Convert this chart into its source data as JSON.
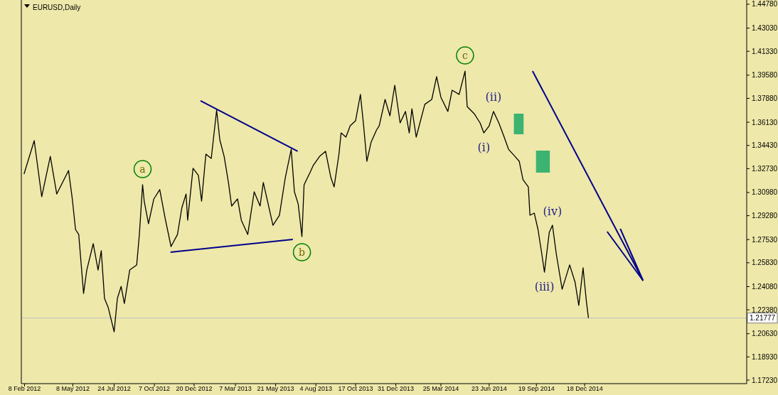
{
  "chart_data": {
    "type": "line",
    "title": "EURUSD,Daily",
    "xlim": [
      "2012-02-02",
      "2015-10-16"
    ],
    "xticks": [
      {
        "value": "2012-02-08",
        "label": "8 Feb 2012"
      },
      {
        "value": "2012-05-08",
        "label": "8 May 2012"
      },
      {
        "value": "2012-07-24",
        "label": "24 Jul 2012"
      },
      {
        "value": "2012-10-07",
        "label": "7 Oct 2012"
      },
      {
        "value": "2012-12-20",
        "label": "20 Dec 2012"
      },
      {
        "value": "2013-03-07",
        "label": "7 Mar 2013"
      },
      {
        "value": "2013-05-21",
        "label": "21 May 2013"
      },
      {
        "value": "2013-08-04",
        "label": "4 Aug 2013"
      },
      {
        "value": "2013-10-17",
        "label": "17 Oct 2013"
      },
      {
        "value": "2013-12-31",
        "label": "31 Dec 2013"
      },
      {
        "value": "2014-03-25",
        "label": "25 Mar 2014"
      },
      {
        "value": "2014-06-23",
        "label": "23 Jun 2014"
      },
      {
        "value": "2014-09-19",
        "label": "19 Sep 2014"
      },
      {
        "value": "2014-12-18",
        "label": "18 Dec 2014"
      }
    ],
    "ylim": [
      1.1697,
      1.4509
    ],
    "yticks": [
      {
        "value": 1.1723,
        "label": "1.17230"
      },
      {
        "value": 1.1893,
        "label": "1.18930"
      },
      {
        "value": 1.2063,
        "label": "1.20630"
      },
      {
        "value": 1.2238,
        "label": "1.22380"
      },
      {
        "value": 1.2408,
        "label": "1.24080"
      },
      {
        "value": 1.2583,
        "label": "1.25830"
      },
      {
        "value": 1.2753,
        "label": "1.27530"
      },
      {
        "value": 1.2928,
        "label": "1.29280"
      },
      {
        "value": 1.3098,
        "label": "1.30980"
      },
      {
        "value": 1.3273,
        "label": "1.32730"
      },
      {
        "value": 1.3443,
        "label": "1.34430"
      },
      {
        "value": 1.3613,
        "label": "1.36130"
      },
      {
        "value": 1.3788,
        "label": "1.37880"
      },
      {
        "value": 1.3958,
        "label": "1.39580"
      },
      {
        "value": 1.4133,
        "label": "1.41330"
      },
      {
        "value": 1.4303,
        "label": "1.43030"
      },
      {
        "value": 1.4478,
        "label": "1.44780"
      }
    ],
    "series": [
      {
        "color": "#000000",
        "x": [
          "2012-02-07",
          "2012-02-26",
          "2012-03-11",
          "2012-03-27",
          "2012-04-08",
          "2012-04-30",
          "2012-05-07",
          "2012-05-13",
          "2012-05-19",
          "2012-05-28",
          "2012-06-03",
          "2012-06-15",
          "2012-06-24",
          "2012-06-30",
          "2012-07-06",
          "2012-07-13",
          "2012-07-24",
          "2012-07-30",
          "2012-08-06",
          "2012-08-12",
          "2012-08-22",
          "2012-09-04",
          "2012-09-09",
          "2012-09-15",
          "2012-09-18",
          "2012-09-26",
          "2012-10-06",
          "2012-10-17",
          "2012-10-27",
          "2012-11-07",
          "2012-11-19",
          "2012-11-27",
          "2012-12-05",
          "2012-12-08",
          "2012-12-18",
          "2012-12-28",
          "2013-01-03",
          "2013-01-11",
          "2013-01-21",
          "2013-01-31",
          "2013-02-06",
          "2013-02-14",
          "2013-02-22",
          "2013-02-28",
          "2013-03-11",
          "2013-03-18",
          "2013-03-30",
          "2013-04-11",
          "2013-04-22",
          "2013-04-28",
          "2013-05-16",
          "2013-05-28",
          "2013-06-08",
          "2013-06-19",
          "2013-06-25",
          "2013-07-02",
          "2013-07-09",
          "2013-07-13",
          "2013-07-24",
          "2013-07-30",
          "2013-08-11",
          "2013-08-22",
          "2013-09-01",
          "2013-09-07",
          "2013-09-16",
          "2013-09-20",
          "2013-09-29",
          "2013-10-07",
          "2013-10-17",
          "2013-10-26",
          "2013-11-01",
          "2013-11-07",
          "2013-11-15",
          "2013-11-25",
          "2013-11-30",
          "2013-12-11",
          "2013-12-20",
          "2013-12-29",
          "2014-01-08",
          "2014-01-18",
          "2014-01-25",
          "2014-01-30",
          "2014-02-07",
          "2014-02-23",
          "2014-03-08",
          "2014-03-17",
          "2014-03-25",
          "2014-04-07",
          "2014-04-15",
          "2014-04-28",
          "2014-05-09",
          "2014-05-13",
          "2014-05-26",
          "2014-06-06",
          "2014-06-13",
          "2014-06-23",
          "2014-07-01",
          "2014-07-11",
          "2014-07-21",
          "2014-07-29",
          "2014-08-10",
          "2014-08-18",
          "2014-08-25",
          "2014-09-04",
          "2014-09-07",
          "2014-09-15",
          "2014-09-22",
          "2014-09-29",
          "2014-10-04",
          "2014-10-13",
          "2014-10-19",
          "2014-10-26",
          "2014-11-06",
          "2014-11-20",
          "2014-11-30",
          "2014-12-07",
          "2014-12-15",
          "2014-12-21",
          "2014-12-25"
        ],
        "values": [
          1.3233,
          1.3478,
          1.3067,
          1.3363,
          1.3087,
          1.3259,
          1.3051,
          1.2827,
          1.279,
          1.2358,
          1.253,
          1.2723,
          1.253,
          1.2671,
          1.2322,
          1.2254,
          1.2077,
          1.2322,
          1.241,
          1.2285,
          1.253,
          1.2567,
          1.279,
          1.3155,
          1.3035,
          1.2869,
          1.3051,
          1.3119,
          1.291,
          1.2702,
          1.279,
          1.2983,
          1.3087,
          1.2895,
          1.3275,
          1.3223,
          1.3035,
          1.3379,
          1.3348,
          1.3702,
          1.3483,
          1.3363,
          1.3171,
          1.2999,
          1.3051,
          1.2895,
          1.279,
          1.3103,
          1.2999,
          1.3171,
          1.2858,
          1.2931,
          1.3207,
          1.3415,
          1.3103,
          1.3014,
          1.2775,
          1.3155,
          1.3244,
          1.3296,
          1.3363,
          1.34,
          1.3207,
          1.3139,
          1.3379,
          1.3535,
          1.3504,
          1.3587,
          1.3624,
          1.3817,
          1.3587,
          1.3327,
          1.3468,
          1.3556,
          1.3587,
          1.378,
          1.366,
          1.3884,
          1.3608,
          1.3692,
          1.3535,
          1.3712,
          1.3504,
          1.3744,
          1.378,
          1.3947,
          1.3796,
          1.3692,
          1.3848,
          1.3817,
          1.3988,
          1.3728,
          1.3676,
          1.3608,
          1.3535,
          1.3587,
          1.3692,
          1.3608,
          1.3504,
          1.3415,
          1.3363,
          1.3327,
          1.3192,
          1.3139,
          1.2931,
          1.2947,
          1.2827,
          1.265,
          1.2514,
          1.2806,
          1.2858,
          1.265,
          1.2389,
          1.2567,
          1.2442,
          1.227,
          1.2546,
          1.2306,
          1.2178
        ]
      },
      {
        "color": "#00008b",
        "x": [
          "2013-01-01",
          "2013-07-01"
        ],
        "values": [
          1.377,
          1.34
        ]
      },
      {
        "color": "#00008b",
        "x": [
          "2012-11-06",
          "2013-06-22"
        ],
        "values": [
          1.266,
          1.2754
        ]
      }
    ],
    "ref_lines": [
      {
        "axis": "y",
        "value": 1.21777,
        "label": "1.21777",
        "color": "#c0c0c0"
      }
    ],
    "annotations": [
      {
        "text": "a",
        "x": "2012-09-15",
        "y": 1.3155
      },
      {
        "text": "b",
        "x": "2013-07-09",
        "y": 1.2775
      },
      {
        "text": "c",
        "x": "2014-05-09",
        "y": 1.3988
      },
      {
        "text": "(i)",
        "x": "2014-06-13",
        "y": 1.3535
      },
      {
        "text": "(ii)",
        "x": "2014-07-01",
        "y": 1.3692
      },
      {
        "text": "(iii)",
        "x": "2014-10-04",
        "y": 1.2514
      },
      {
        "text": "(iv)",
        "x": "2014-10-19",
        "y": 1.2858
      }
    ],
    "grid": false,
    "marker": "none",
    "line_style": "solid"
  }
}
